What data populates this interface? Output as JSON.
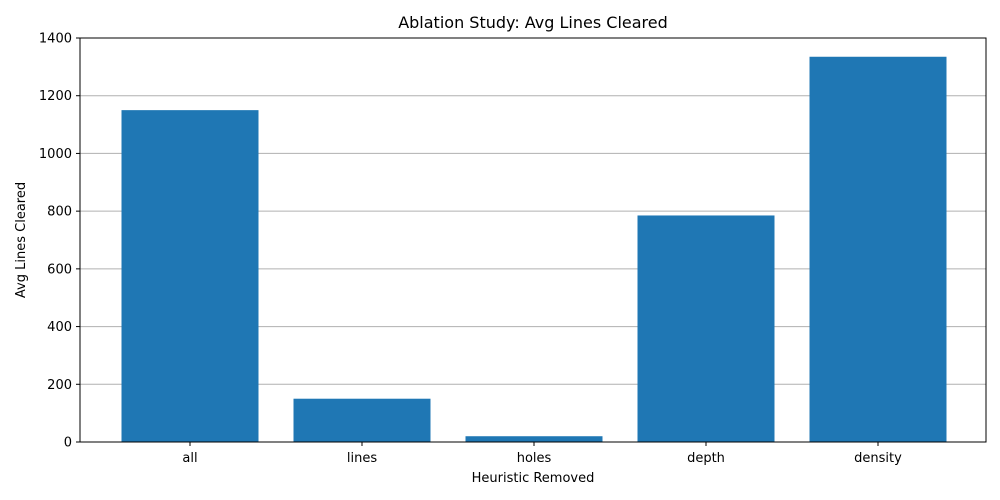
{
  "chart_data": {
    "type": "bar",
    "title": "Ablation Study: Avg Lines Cleared",
    "xlabel": "Heuristic Removed",
    "ylabel": "Avg Lines Cleared",
    "categories": [
      "all",
      "lines",
      "holes",
      "depth",
      "density"
    ],
    "values": [
      1150,
      150,
      20,
      785,
      1335
    ],
    "ylim": [
      0,
      1400
    ],
    "yticks": [
      0,
      200,
      400,
      600,
      800,
      1000,
      1200,
      1400
    ],
    "grid": "y",
    "bar_color": "#1f77b4",
    "grid_color": "#b0b0b0"
  }
}
